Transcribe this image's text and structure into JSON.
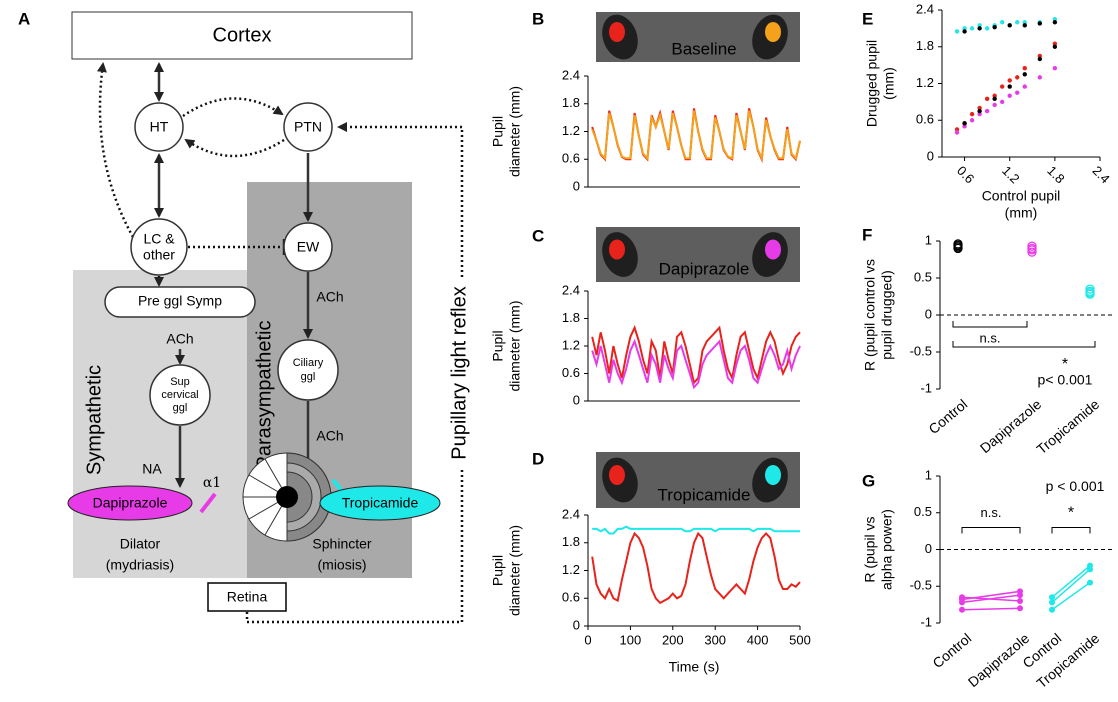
{
  "diagram": {
    "panel": "A",
    "cortex": "Cortex",
    "ht": "HT",
    "ptn": "PTN",
    "lc": [
      "LC &",
      "other"
    ],
    "ew": "EW",
    "pre_ggl": "Pre ggl Symp",
    "sup_ggl": [
      "Sup",
      "cervical",
      "ggl"
    ],
    "ciliary": [
      "Ciliary",
      "ggl"
    ],
    "ach": [
      "ACh",
      "ACh",
      "ACh"
    ],
    "na": "NA",
    "sympathetic": "Sympathetic",
    "parasympathetic": "Parasympathetic",
    "reflex": "Pupillary light reflex",
    "alpha": "α1",
    "dapiprazole": "Dapiprazole",
    "tropicamide": "Tropicamide",
    "dilator": [
      "Dilator",
      "(mydriasis)"
    ],
    "sphincter": [
      "Sphincter",
      "(miosis)"
    ],
    "retina": "Retina"
  },
  "chart_data": [
    {
      "type": "line",
      "panel": "B",
      "header": "Baseline",
      "header_color": "#ffffff",
      "ylabel": [
        "Pupil",
        "diameter (mm)"
      ],
      "xlim": [
        0,
        500
      ],
      "ylim": [
        0,
        2.4
      ],
      "yticks": [
        0,
        0.6,
        1.2,
        1.8,
        2.4
      ],
      "x": [
        10,
        20,
        30,
        40,
        50,
        60,
        70,
        80,
        90,
        100,
        110,
        120,
        130,
        140,
        150,
        160,
        170,
        180,
        190,
        200,
        210,
        220,
        230,
        240,
        250,
        260,
        270,
        280,
        290,
        300,
        310,
        320,
        330,
        340,
        350,
        360,
        370,
        380,
        390,
        400,
        410,
        420,
        430,
        440,
        450,
        460,
        470,
        480,
        490,
        500
      ],
      "series": [
        {
          "color": "#e8231b",
          "values": [
            1.3,
            1.0,
            0.7,
            0.6,
            1.65,
            1.3,
            0.9,
            0.65,
            0.6,
            0.6,
            1.6,
            1.1,
            0.7,
            0.6,
            1.55,
            1.3,
            1.6,
            1.2,
            0.8,
            1.65,
            1.3,
            0.9,
            0.6,
            0.6,
            1.7,
            1.2,
            0.8,
            0.6,
            0.6,
            1.55,
            1.2,
            0.8,
            0.65,
            0.6,
            1.6,
            1.2,
            0.8,
            1.7,
            1.3,
            0.8,
            0.6,
            1.5,
            1.1,
            0.8,
            0.6,
            0.6,
            1.3,
            0.7,
            0.6,
            1.0
          ]
        },
        {
          "color": "#f5a21b",
          "values": [
            1.25,
            1.0,
            0.72,
            0.62,
            1.6,
            1.3,
            0.92,
            0.66,
            0.62,
            0.62,
            1.55,
            1.1,
            0.72,
            0.62,
            1.5,
            1.3,
            1.55,
            1.2,
            0.82,
            1.6,
            1.3,
            0.9,
            0.62,
            0.62,
            1.65,
            1.2,
            0.82,
            0.62,
            0.62,
            1.5,
            1.2,
            0.82,
            0.66,
            0.62,
            1.55,
            1.2,
            0.82,
            1.65,
            1.3,
            0.82,
            0.62,
            1.45,
            1.1,
            0.82,
            0.62,
            0.62,
            1.25,
            0.72,
            0.62,
            1.0
          ]
        }
      ]
    },
    {
      "type": "line",
      "panel": "C",
      "header": "Dapiprazole",
      "header_color": "#e83be8",
      "ylabel": [
        "Pupil",
        "diameter (mm)"
      ],
      "xlim": [
        0,
        500
      ],
      "ylim": [
        0,
        2.4
      ],
      "yticks": [
        0,
        0.6,
        1.2,
        1.8,
        2.4
      ],
      "x": [
        10,
        20,
        30,
        40,
        50,
        60,
        70,
        80,
        90,
        100,
        110,
        120,
        130,
        140,
        150,
        160,
        170,
        180,
        190,
        200,
        210,
        220,
        230,
        240,
        250,
        260,
        270,
        280,
        290,
        300,
        310,
        320,
        330,
        340,
        350,
        360,
        370,
        380,
        390,
        400,
        410,
        420,
        430,
        440,
        450,
        460,
        470,
        480,
        490,
        500
      ],
      "series": [
        {
          "color": "#e8231b",
          "values": [
            1.4,
            1.0,
            1.5,
            1.1,
            0.6,
            1.2,
            0.8,
            0.5,
            1.0,
            1.4,
            1.6,
            1.3,
            0.9,
            0.6,
            1.3,
            1.1,
            0.5,
            1.3,
            0.9,
            0.6,
            1.4,
            1.5,
            1.2,
            0.8,
            0.4,
            0.5,
            1.1,
            1.3,
            1.4,
            1.5,
            1.6,
            1.1,
            0.7,
            0.5,
            1.0,
            1.4,
            1.5,
            1.1,
            0.7,
            0.5,
            0.9,
            1.3,
            1.5,
            1.3,
            0.9,
            0.6,
            0.8,
            1.2,
            1.4,
            1.5
          ]
        },
        {
          "color": "#e83be8",
          "values": [
            1.1,
            0.8,
            1.2,
            0.8,
            0.4,
            0.9,
            0.6,
            0.4,
            0.7,
            1.1,
            1.3,
            1.0,
            0.7,
            0.4,
            1.0,
            0.8,
            0.4,
            1.0,
            0.7,
            0.5,
            1.1,
            1.2,
            0.9,
            0.6,
            0.3,
            0.4,
            0.8,
            1.0,
            1.1,
            1.2,
            1.3,
            0.9,
            0.5,
            0.4,
            0.8,
            1.1,
            1.2,
            0.9,
            0.5,
            0.4,
            0.7,
            1.0,
            1.2,
            1.0,
            0.7,
            0.8,
            1.1,
            0.7,
            1.0,
            1.2
          ]
        }
      ]
    },
    {
      "type": "line",
      "panel": "D",
      "header": "Tropicamide",
      "header_color": "#1ee8e8",
      "ylabel": [
        "Pupil",
        "diameter (mm)"
      ],
      "xlabel": "Time (s)",
      "xlim": [
        0,
        500
      ],
      "xticks": [
        0,
        100,
        200,
        300,
        400,
        500
      ],
      "ylim": [
        0,
        2.4
      ],
      "yticks": [
        0,
        0.6,
        1.2,
        1.8,
        2.4
      ],
      "x": [
        10,
        20,
        30,
        40,
        50,
        60,
        70,
        80,
        90,
        100,
        110,
        120,
        130,
        140,
        150,
        160,
        170,
        180,
        190,
        200,
        210,
        220,
        230,
        240,
        250,
        260,
        270,
        280,
        290,
        300,
        310,
        320,
        330,
        340,
        350,
        360,
        370,
        380,
        390,
        400,
        410,
        420,
        430,
        440,
        450,
        460,
        470,
        480,
        490,
        500
      ],
      "series": [
        {
          "color": "#e8231b",
          "values": [
            1.5,
            0.9,
            0.7,
            0.6,
            0.8,
            0.6,
            0.55,
            1.0,
            1.4,
            1.8,
            2.0,
            1.9,
            1.7,
            1.3,
            0.8,
            0.6,
            0.5,
            0.55,
            0.6,
            0.7,
            0.6,
            0.65,
            0.9,
            1.4,
            1.8,
            2.0,
            1.9,
            1.5,
            1.1,
            0.8,
            0.7,
            0.6,
            0.7,
            0.8,
            0.9,
            0.8,
            0.7,
            1.0,
            1.4,
            1.7,
            1.9,
            2.0,
            1.9,
            1.5,
            1.0,
            0.8,
            0.8,
            0.9,
            0.85,
            0.95
          ]
        },
        {
          "color": "#1ee8e8",
          "values": [
            2.1,
            2.1,
            2.05,
            2.1,
            2.0,
            2.0,
            2.1,
            2.1,
            2.15,
            2.1,
            2.1,
            2.1,
            2.1,
            2.1,
            2.1,
            2.1,
            2.1,
            2.1,
            2.1,
            2.1,
            2.1,
            2.1,
            2.05,
            2.05,
            2.1,
            2.1,
            2.1,
            2.1,
            2.1,
            2.05,
            2.1,
            2.1,
            2.1,
            2.1,
            2.1,
            2.1,
            2.1,
            2.1,
            2.05,
            2.1,
            2.1,
            2.1,
            2.1,
            2.05,
            2.05,
            2.05,
            2.05,
            2.05,
            2.05,
            2.05
          ]
        }
      ]
    },
    {
      "type": "scatter",
      "panel": "E",
      "ylabel": [
        "Drugged pupil",
        "(mm)"
      ],
      "xlabel": [
        "Control pupil",
        "(mm)"
      ],
      "xlim": [
        0.3,
        2.4
      ],
      "xticks": [
        0.6,
        1.2,
        1.8,
        2.4
      ],
      "ylim": [
        0,
        2.4
      ],
      "yticks": [
        0,
        0.6,
        1.2,
        1.8,
        2.4
      ],
      "series": [
        {
          "color": "#1ee8e8",
          "x": [
            0.5,
            0.6,
            0.7,
            0.8,
            0.9,
            1.0,
            1.1,
            1.2,
            1.3,
            1.4,
            1.6,
            1.8
          ],
          "values": [
            2.05,
            2.1,
            2.1,
            2.15,
            2.1,
            2.15,
            2.2,
            2.15,
            2.2,
            2.2,
            2.2,
            2.25
          ]
        },
        {
          "color": "#e8231b",
          "x": [
            0.5,
            0.6,
            0.7,
            0.8,
            0.9,
            1.0,
            1.1,
            1.2,
            1.3,
            1.4,
            1.6,
            1.8
          ],
          "values": [
            0.45,
            0.55,
            0.7,
            0.8,
            0.95,
            1.0,
            1.15,
            1.25,
            1.3,
            1.45,
            1.65,
            1.85
          ]
        },
        {
          "color": "#e83be8",
          "x": [
            0.5,
            0.6,
            0.7,
            0.8,
            0.9,
            1.0,
            1.1,
            1.2,
            1.3,
            1.4,
            1.6,
            1.8
          ],
          "values": [
            0.4,
            0.5,
            0.6,
            0.7,
            0.75,
            0.85,
            0.9,
            1.0,
            1.05,
            1.15,
            1.3,
            1.45
          ]
        },
        {
          "color": "#000000",
          "x": [
            0.6,
            0.8,
            1.0,
            1.2,
            1.4,
            1.6,
            1.8
          ],
          "values": [
            2.05,
            2.1,
            2.12,
            2.15,
            2.15,
            2.18,
            2.2
          ]
        },
        {
          "color": "#000000",
          "x": [
            0.6,
            0.8,
            1.0,
            1.2,
            1.4,
            1.6,
            1.8
          ],
          "values": [
            0.55,
            0.75,
            0.95,
            1.15,
            1.35,
            1.6,
            1.8
          ]
        }
      ]
    },
    {
      "type": "dots",
      "panel": "F",
      "ylabel": [
        "R (pupil control vs",
        "pupil drugged)"
      ],
      "categories": [
        "Control",
        "Dapiprazole",
        "Tropicamide"
      ],
      "colors": [
        "#000000",
        "#e83be8",
        "#1ee8e8"
      ],
      "values": [
        [
          0.92,
          0.94,
          0.96,
          0.9
        ],
        [
          0.85,
          0.88,
          0.9,
          0.93
        ],
        [
          0.28,
          0.32,
          0.35,
          0.3
        ]
      ],
      "ylim": [
        -1,
        1
      ],
      "yticks": [
        -1,
        -0.5,
        0,
        0.5,
        1
      ],
      "annotations": [
        "n.s.",
        "*",
        "p< 0.001"
      ]
    },
    {
      "type": "paired",
      "panel": "G",
      "ylabel": [
        "R (pupil vs",
        "alpha power)"
      ],
      "categories": [
        "Control",
        "Dapiprazole",
        "Control",
        "Tropicamide"
      ],
      "colors": [
        "#000000",
        "#e83be8",
        "#000000",
        "#1ee8e8"
      ],
      "groups": [
        {
          "color": "#e83be8",
          "control": [
            -0.72,
            -0.68,
            -0.82,
            -0.65
          ],
          "drug": [
            -0.62,
            -0.57,
            -0.8,
            -0.7
          ]
        },
        {
          "color": "#1ee8e8",
          "control": [
            -0.65,
            -0.72,
            -0.82
          ],
          "drug": [
            -0.22,
            -0.27,
            -0.45
          ]
        }
      ],
      "ylim": [
        -1,
        1
      ],
      "yticks": [
        -1,
        -0.5,
        0,
        0.5,
        1
      ],
      "annotations": [
        "n.s.",
        "*",
        "p < 0.001"
      ]
    }
  ]
}
